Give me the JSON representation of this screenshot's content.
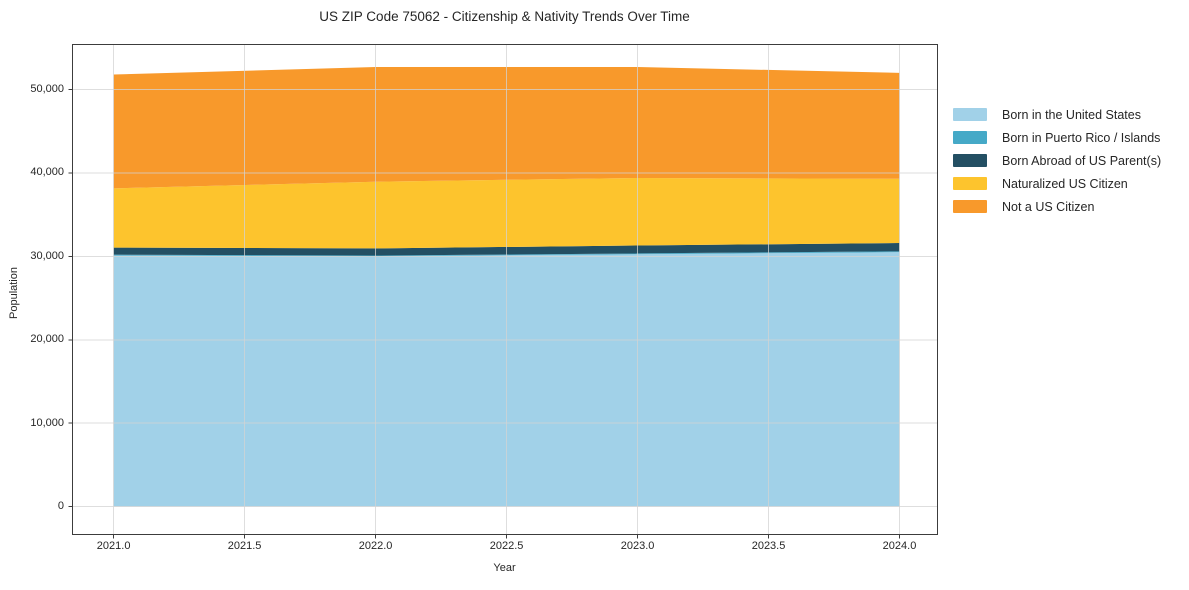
{
  "chart_data": {
    "type": "area",
    "stacked": true,
    "title": "US ZIP Code 75062 - Citizenship & Nativity Trends Over Time",
    "xlabel": "Year",
    "ylabel": "Population",
    "x": [
      2021,
      2022,
      2023,
      2024
    ],
    "series": [
      {
        "name": "Born in the United States",
        "color": "#a1d1e8",
        "values": [
          30100,
          30000,
          30250,
          30500
        ]
      },
      {
        "name": "Born in Puerto Rico / Islands",
        "color": "#45a9c7",
        "values": [
          100,
          100,
          100,
          100
        ]
      },
      {
        "name": "Born Abroad of US Parent(s)",
        "color": "#234f63",
        "values": [
          850,
          850,
          950,
          1000
        ]
      },
      {
        "name": "Naturalized US Citizen",
        "color": "#fdc42d",
        "values": [
          7100,
          8000,
          8100,
          7700
        ]
      },
      {
        "name": "Not a US Citizen",
        "color": "#f8992b",
        "values": [
          13650,
          13750,
          13300,
          12700
        ]
      }
    ],
    "stack_totals": [
      51800,
      52700,
      52700,
      52000
    ],
    "x_tick_values": [
      2021.0,
      2021.5,
      2022.0,
      2022.5,
      2023.0,
      2023.5,
      2024.0
    ],
    "x_tick_labels": [
      "2021.0",
      "2021.5",
      "2022.0",
      "2022.5",
      "2023.0",
      "2023.5",
      "2024.0"
    ],
    "y_tick_values": [
      0,
      10000,
      20000,
      30000,
      40000,
      50000
    ],
    "y_tick_labels": [
      "0",
      "10,000",
      "20,000",
      "30,000",
      "40,000",
      "50,000"
    ],
    "xlim": [
      2020.843,
      2024.145
    ],
    "ylim": [
      -3350,
      55400
    ],
    "grid": true,
    "legend_position": "center-right-outside",
    "colors": {
      "grid": "#d3d3d3",
      "spine": "#3c3c3c",
      "text": "#262626",
      "background": "#ffffff"
    }
  }
}
